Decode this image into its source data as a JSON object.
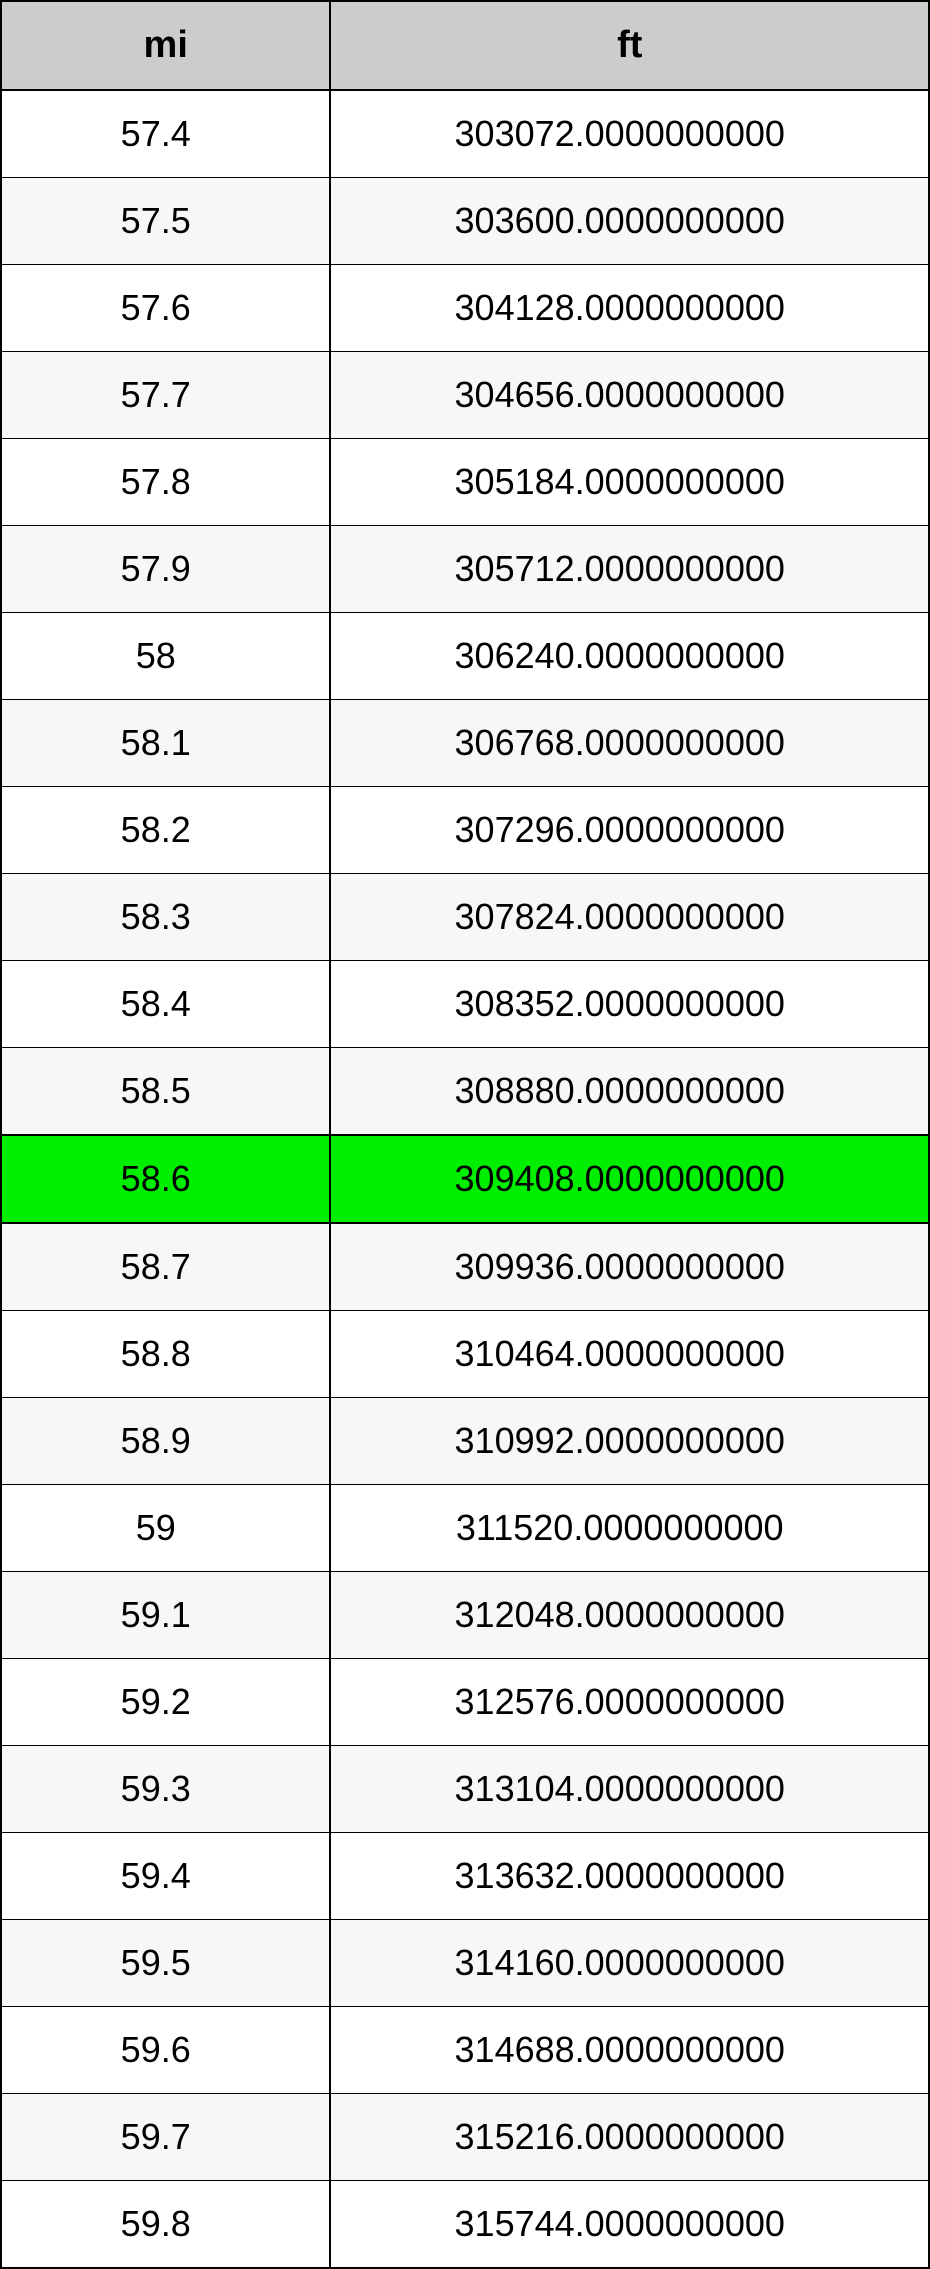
{
  "table": {
    "type": "table",
    "columns": [
      {
        "key": "mi",
        "label": "mi",
        "width_pct": 35.5
      },
      {
        "key": "ft",
        "label": "ft",
        "width_pct": 64.5
      }
    ],
    "header_bg_color": "#cccccc",
    "header_font_size_pt": 28,
    "cell_font_size_pt": 27,
    "border_color": "#000000",
    "row_bg_odd": "#ffffff",
    "row_bg_even": "#f7f7f7",
    "highlight_bg": "#00ee00",
    "highlight_index": 12,
    "rows": [
      {
        "mi": "57.4",
        "ft": "303072.0000000000"
      },
      {
        "mi": "57.5",
        "ft": "303600.0000000000"
      },
      {
        "mi": "57.6",
        "ft": "304128.0000000000"
      },
      {
        "mi": "57.7",
        "ft": "304656.0000000000"
      },
      {
        "mi": "57.8",
        "ft": "305184.0000000000"
      },
      {
        "mi": "57.9",
        "ft": "305712.0000000000"
      },
      {
        "mi": "58",
        "ft": "306240.0000000000"
      },
      {
        "mi": "58.1",
        "ft": "306768.0000000000"
      },
      {
        "mi": "58.2",
        "ft": "307296.0000000000"
      },
      {
        "mi": "58.3",
        "ft": "307824.0000000000"
      },
      {
        "mi": "58.4",
        "ft": "308352.0000000000"
      },
      {
        "mi": "58.5",
        "ft": "308880.0000000000"
      },
      {
        "mi": "58.6",
        "ft": "309408.0000000000"
      },
      {
        "mi": "58.7",
        "ft": "309936.0000000000"
      },
      {
        "mi": "58.8",
        "ft": "310464.0000000000"
      },
      {
        "mi": "58.9",
        "ft": "310992.0000000000"
      },
      {
        "mi": "59",
        "ft": "311520.0000000000"
      },
      {
        "mi": "59.1",
        "ft": "312048.0000000000"
      },
      {
        "mi": "59.2",
        "ft": "312576.0000000000"
      },
      {
        "mi": "59.3",
        "ft": "313104.0000000000"
      },
      {
        "mi": "59.4",
        "ft": "313632.0000000000"
      },
      {
        "mi": "59.5",
        "ft": "314160.0000000000"
      },
      {
        "mi": "59.6",
        "ft": "314688.0000000000"
      },
      {
        "mi": "59.7",
        "ft": "315216.0000000000"
      },
      {
        "mi": "59.8",
        "ft": "315744.0000000000"
      }
    ]
  }
}
